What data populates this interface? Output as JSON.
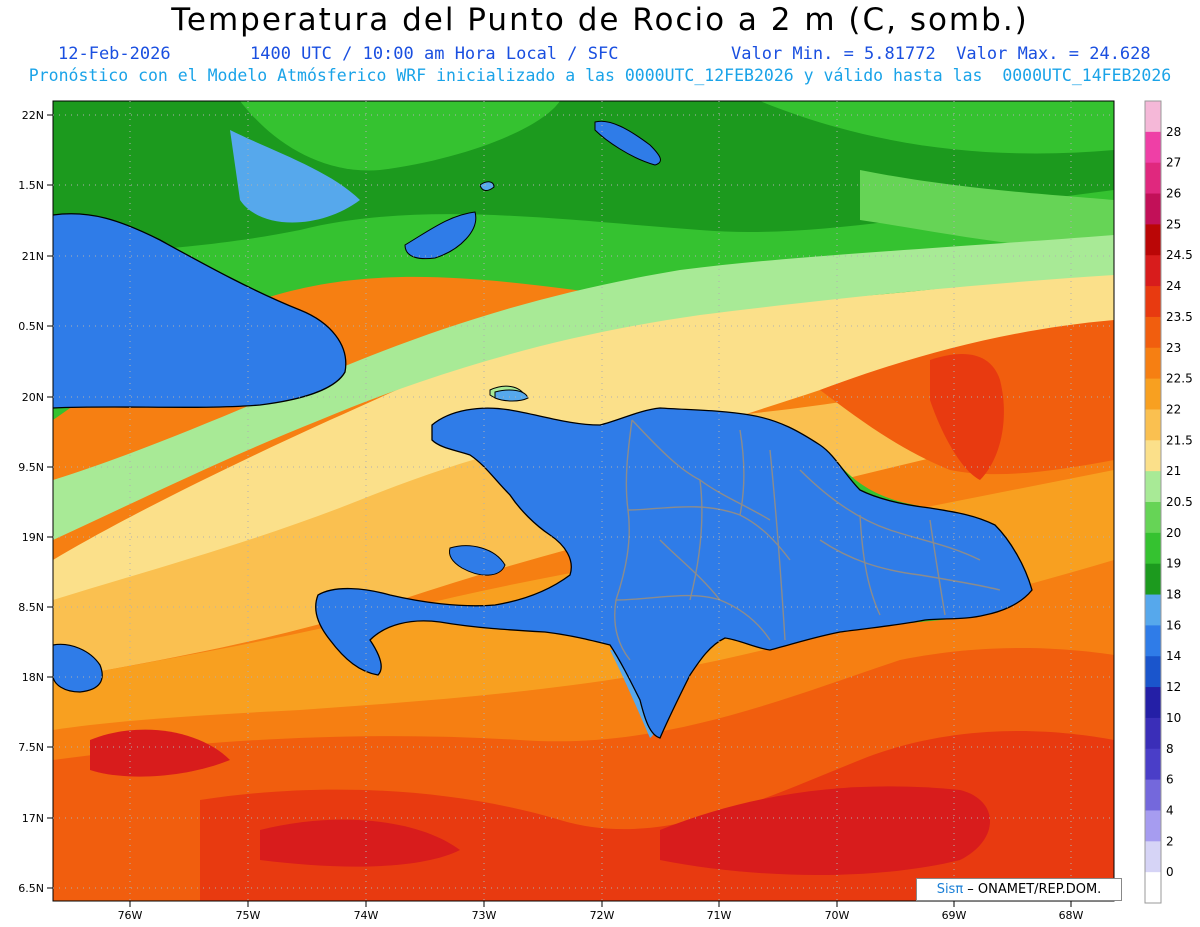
{
  "header": {
    "title": "Temperatura del Punto de Rocio a 2 m (C, somb.)",
    "date": "12-Feb-2026",
    "time": "1400 UTC / 10:00 am Hora Local / SFC",
    "minmax": "Valor Min. = 5.81772  Valor Max. = 24.628",
    "forecast": "Pronóstico con el Modelo Atmósferico WRF inicializado a las 0000UTC_12FEB2026 y válido hasta las  0000UTC_14FEB2026"
  },
  "axes": {
    "lat_labels": [
      "22N",
      "1.5N",
      "21N",
      "0.5N",
      "20N",
      "9.5N",
      "19N",
      "8.5N",
      "18N",
      "7.5N",
      "17N",
      "6.5N"
    ],
    "lon_labels": [
      "76W",
      "75W",
      "74W",
      "73W",
      "72W",
      "71W",
      "70W",
      "69W",
      "68W"
    ]
  },
  "colorbar": {
    "labels": [
      "28",
      "27",
      "26",
      "25",
      "24.5",
      "24",
      "23.5",
      "23",
      "22.5",
      "22",
      "21.5",
      "21",
      "20.5",
      "20",
      "19",
      "18",
      "16",
      "14",
      "12",
      "10",
      "8",
      "6",
      "4",
      "2",
      "0"
    ],
    "colors": [
      "#f5b8d8",
      "#ef3fa6",
      "#e0287e",
      "#c21058",
      "#ba0606",
      "#d81c1c",
      "#e83a10",
      "#f15e0e",
      "#f67f12",
      "#f8a020",
      "#fac050",
      "#fbe08a",
      "#a8ea96",
      "#66d456",
      "#35c230",
      "#1c9a1e",
      "#56a8ec",
      "#2f7ce8",
      "#1a55cc",
      "#241fa6",
      "#3a2eb8",
      "#4a3ec8",
      "#7468dc",
      "#a69cf0",
      "#d6d4f6",
      "#ffffff"
    ]
  },
  "map": {
    "colors": {
      "green_dark": "#1c9a1e",
      "green": "#35c230",
      "green_light": "#66d456",
      "green_pale": "#a8ea96",
      "yellow": "#fbe08a",
      "orange_light": "#fac050",
      "orange": "#f8a020",
      "orange_dark": "#f67f12",
      "red_orange": "#f15e0e",
      "red": "#e83a10",
      "red_dark": "#d81c1c",
      "blue_light": "#56a8ec",
      "blue": "#2f7ce8",
      "blue_dark": "#1a55cc",
      "indigo": "#241fa6",
      "border_gray": "#8c8c8c"
    }
  },
  "credit": {
    "brand": "Sisπ",
    "text": " – ONAMET/REP.DOM."
  }
}
